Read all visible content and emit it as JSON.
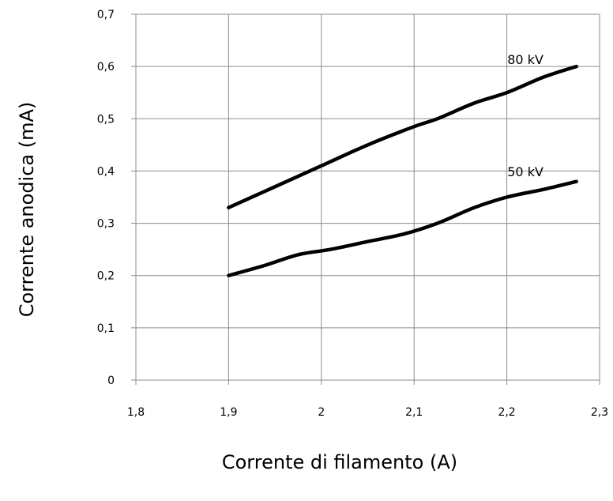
{
  "chart_data": {
    "type": "line",
    "title": "",
    "xlabel": "Corrente di filamento (A)",
    "ylabel": "Corrente anodica (mA)",
    "xlim": [
      1.8,
      2.3
    ],
    "ylim": [
      0,
      0.7
    ],
    "x_ticks": [
      "1,8",
      "1,9",
      "2",
      "2,1",
      "2,2",
      "2,3"
    ],
    "y_ticks": [
      "0",
      "0,1",
      "0,2",
      "0,3",
      "0,4",
      "0,5",
      "0,6",
      "0,7"
    ],
    "grid": true,
    "series": [
      {
        "name": "80 kV",
        "color": "#000000",
        "x": [
          1.9,
          1.95,
          2.0,
          2.05,
          2.1,
          2.125,
          2.165,
          2.2,
          2.24,
          2.275
        ],
        "y": [
          0.33,
          0.37,
          0.41,
          0.45,
          0.485,
          0.5,
          0.53,
          0.55,
          0.58,
          0.6
        ]
      },
      {
        "name": "50 kV",
        "color": "#000000",
        "x": [
          1.9,
          1.94,
          1.975,
          2.01,
          2.05,
          2.09,
          2.125,
          2.165,
          2.2,
          2.24,
          2.275
        ],
        "y": [
          0.2,
          0.22,
          0.24,
          0.25,
          0.265,
          0.28,
          0.3,
          0.33,
          0.35,
          0.365,
          0.38
        ]
      }
    ]
  }
}
